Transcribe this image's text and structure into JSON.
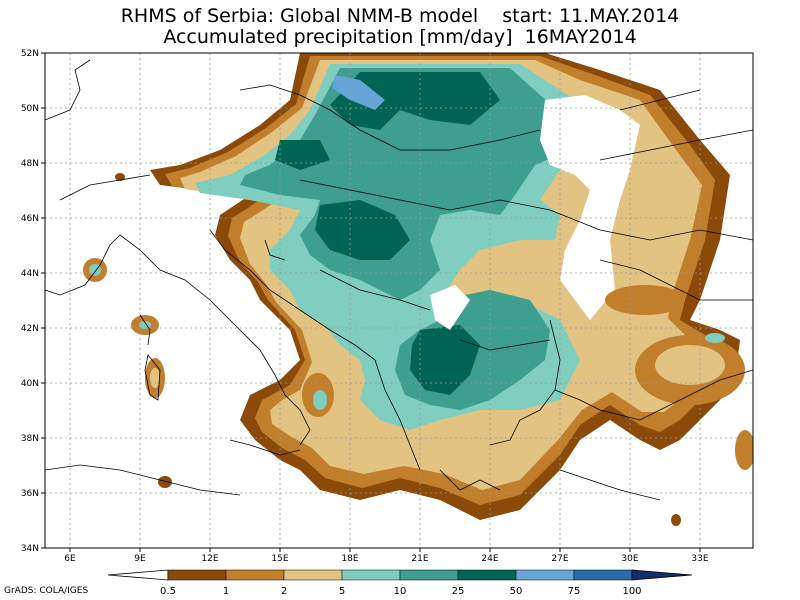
{
  "title_line1": "RHMS of Serbia: Global NMM-B model    start: 11.MAY.2014",
  "title_line2": "Accumulated precipitation [mm/day]  16MAY2014",
  "lat_labels": [
    "52N",
    "50N",
    "48N",
    "46N",
    "44N",
    "42N",
    "40N",
    "38N",
    "36N",
    "34N"
  ],
  "lon_labels": [
    "6E",
    "9E",
    "12E",
    "15E",
    "18E",
    "21E",
    "24E",
    "27E",
    "30E",
    "33E"
  ],
  "colorbar": {
    "labels": [
      "0.5",
      "1",
      "2",
      "5",
      "10",
      "25",
      "50",
      "75",
      "100"
    ],
    "colors": [
      "#8b4a08",
      "#c17f2c",
      "#e2c382",
      "#7fcebf",
      "#3e9e90",
      "#006455",
      "#65a6d6",
      "#2a6aa8",
      "#102d6e"
    ]
  },
  "credit": "GrADS: COLA/IGES"
}
